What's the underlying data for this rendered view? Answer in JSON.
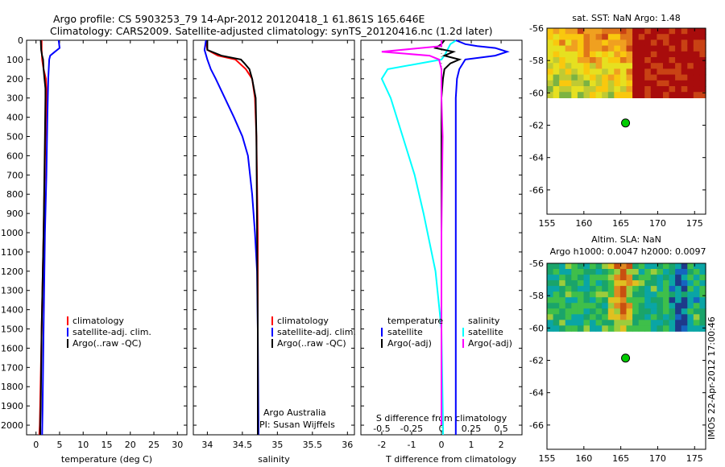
{
  "titles": {
    "line1": "Argo profile: CS 5903253_79 14-Apr-2012 20120418_1 61.861S 165.646E",
    "line2": "Climatology: CARS2009. Satellite-adjusted climatology: synTS_20120416.nc (1.2d later)"
  },
  "colors": {
    "climatology": "#ff0000",
    "satellite": "#0000ff",
    "argo": "#000000",
    "t_satellite": "#00ffff",
    "s_argo": "#ff00ff",
    "marker": "#00cc00"
  },
  "imos_stamp": "IMOS 22-Apr-2012 17:00:46",
  "chart_data": [
    {
      "id": "temperature",
      "type": "line",
      "xlabel": "temperature (deg C)",
      "ylabel": "",
      "xlim": [
        -2,
        32
      ],
      "ylim": [
        2050,
        0
      ],
      "x_ticks": [
        "0",
        "5",
        "10",
        "15",
        "20",
        "25",
        "30"
      ],
      "y_ticks": [
        "0",
        "100",
        "200",
        "300",
        "400",
        "500",
        "600",
        "700",
        "800",
        "900",
        "1000",
        "1100",
        "1200",
        "1300",
        "1400",
        "1500",
        "1600",
        "1700",
        "1800",
        "1900",
        "2000"
      ],
      "legend": [
        "climatology",
        "satellite-adj. clim.",
        "Argo(..raw -QC)"
      ],
      "series": [
        {
          "name": "climatology",
          "depth": [
            0,
            50,
            100,
            150,
            200,
            250,
            300,
            500,
            1000,
            1500,
            2000,
            2050
          ],
          "values": [
            1.2,
            1.2,
            1.3,
            1.6,
            2.1,
            2.2,
            2.2,
            2.0,
            1.6,
            1.2,
            0.8,
            0.7
          ]
        },
        {
          "name": "satellite-adj. clim.",
          "depth": [
            0,
            40,
            60,
            80,
            100,
            200,
            400,
            700,
            1000,
            1500,
            1900,
            2050
          ],
          "values": [
            4.8,
            5.0,
            4.0,
            3.0,
            2.8,
            2.6,
            2.4,
            2.2,
            1.9,
            1.6,
            1.4,
            1.3
          ]
        },
        {
          "name": "Argo(..raw -QC)",
          "depth": [
            0,
            50,
            80,
            100,
            150,
            200,
            250,
            300,
            500,
            1000,
            1500,
            1900,
            2000,
            2050
          ],
          "values": [
            1.0,
            1.1,
            1.3,
            1.5,
            1.6,
            1.8,
            2.0,
            2.0,
            1.9,
            1.6,
            1.2,
            1.0,
            0.9,
            0.9
          ]
        }
      ]
    },
    {
      "id": "salinity",
      "type": "line",
      "xlabel": "salinity",
      "ylabel": "",
      "xlim": [
        33.8,
        36.1
      ],
      "ylim": [
        2050,
        0
      ],
      "x_ticks": [
        "34",
        "34.5",
        "35",
        "35.5",
        "36"
      ],
      "legend": [
        "climatology",
        "satellite-adj. clim.",
        "Argo(..raw -QC)"
      ],
      "annotations": [
        "Argo Australia",
        "PI: Susan Wijffels"
      ],
      "series": [
        {
          "name": "climatology",
          "depth": [
            0,
            50,
            80,
            100,
            150,
            200,
            300,
            500,
            1000,
            1500,
            2000,
            2050
          ],
          "values": [
            33.98,
            34.0,
            34.15,
            34.4,
            34.55,
            34.64,
            34.68,
            34.7,
            34.72,
            34.72,
            34.72,
            34.72
          ]
        },
        {
          "name": "satellite-adj. clim.",
          "depth": [
            0,
            50,
            100,
            150,
            200,
            300,
            400,
            500,
            600,
            800,
            1000,
            1200,
            1500,
            2000,
            2050
          ],
          "values": [
            33.98,
            33.96,
            34.0,
            34.05,
            34.12,
            34.25,
            34.38,
            34.5,
            34.58,
            34.64,
            34.68,
            34.71,
            34.72,
            34.73,
            34.73
          ]
        },
        {
          "name": "Argo(..raw -QC)",
          "depth": [
            0,
            50,
            80,
            100,
            120,
            150,
            200,
            300,
            500,
            1000,
            1500,
            2000,
            2050
          ],
          "values": [
            34.0,
            34.0,
            34.2,
            34.48,
            34.53,
            34.6,
            34.64,
            34.69,
            34.7,
            34.71,
            34.72,
            34.72,
            34.72
          ]
        }
      ]
    },
    {
      "id": "difference",
      "type": "line",
      "xlabel": "T difference from climatology",
      "x2label": "S difference from climatology",
      "xlim": [
        -2.7,
        2.7
      ],
      "ylim": [
        2050,
        0
      ],
      "x_ticks": [
        "-2",
        "-1",
        "0",
        "1",
        "2"
      ],
      "x2_ticks": [
        "-0.5",
        "-0.25",
        "0",
        "0.25",
        "0.5"
      ],
      "legend_left": [
        "temperature",
        "satellite",
        "Argo(-adj)"
      ],
      "legend_right": [
        "salinity",
        "satellite",
        "Argo(-adj)"
      ],
      "series": [
        {
          "name": "satellite",
          "variable": "temperature",
          "depth": [
            0,
            20,
            50,
            80,
            100,
            150,
            200,
            300,
            500,
            700,
            900,
            1200,
            1500,
            2000,
            2050
          ],
          "values": [
            0.5,
            0.3,
            0.2,
            0.1,
            0.0,
            -1.8,
            -2.0,
            -1.7,
            -1.3,
            -0.9,
            -0.6,
            -0.2,
            0.0,
            0.05,
            0.05
          ]
        },
        {
          "name": "Argo(-adj)",
          "variable": "temperature",
          "depth": [
            0,
            20,
            40,
            60,
            80,
            100,
            120,
            150,
            200,
            300,
            500,
            1000,
            1500,
            2000
          ],
          "values": [
            0.1,
            0.0,
            -0.2,
            0.4,
            0.1,
            0.6,
            0.3,
            0.1,
            0.05,
            0.0,
            0.0,
            0.0,
            0.0,
            0.0
          ]
        },
        {
          "name": "satellite",
          "variable": "salinity",
          "depth": [
            0,
            20,
            30,
            40,
            60,
            80,
            100,
            150,
            200,
            300,
            500,
            1000,
            1500,
            2000,
            2050
          ],
          "values": [
            0.12,
            0.2,
            0.3,
            0.45,
            0.55,
            0.45,
            0.2,
            0.15,
            0.13,
            0.12,
            0.12,
            0.12,
            0.12,
            0.12,
            0.12
          ]
        },
        {
          "name": "Argo(-adj)",
          "variable": "salinity",
          "depth": [
            0,
            30,
            60,
            80,
            100,
            150,
            200,
            300,
            500,
            1000,
            1500,
            2000
          ],
          "values": [
            0.0,
            0.0,
            -0.5,
            -0.1,
            -0.02,
            0.0,
            0.0,
            0.0,
            0.01,
            0.0,
            0.0,
            0.0
          ]
        }
      ]
    },
    {
      "id": "sst_map",
      "type": "heatmap",
      "title": "sat. SST: NaN Argo: 1.48",
      "xlim": [
        155,
        176.5
      ],
      "ylim": [
        -67.5,
        -56
      ],
      "x_ticks": [
        "155",
        "160",
        "165",
        "170",
        "175"
      ],
      "y_ticks": [
        "-56",
        "-58",
        "-60",
        "-62",
        "-64",
        "-66"
      ],
      "data_extent_lat": [
        -60.3,
        -56
      ],
      "marker": {
        "lon": 165.646,
        "lat": -61.861
      }
    },
    {
      "id": "sla_map",
      "type": "heatmap",
      "title": "Altim. SLA: NaN",
      "subtitle": "Argo h1000: 0.0047 h2000: 0.0097",
      "xlim": [
        155,
        176.5
      ],
      "ylim": [
        -67.5,
        -56
      ],
      "x_ticks": [
        "155",
        "160",
        "165",
        "170",
        "175"
      ],
      "y_ticks": [
        "-56",
        "-58",
        "-60",
        "-62",
        "-64",
        "-66"
      ],
      "data_extent_lat": [
        -60.2,
        -56
      ],
      "marker": {
        "lon": 165.646,
        "lat": -61.861
      }
    }
  ]
}
